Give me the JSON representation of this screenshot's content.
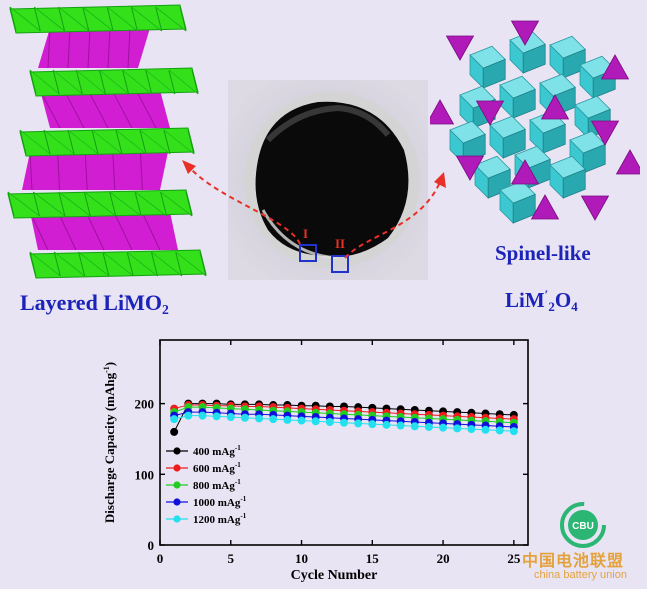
{
  "labels": {
    "layered": "Layered LiMO",
    "layered_sub": "2",
    "spinel_line1": "Spinel-like",
    "spinel_main": "LiM",
    "spinel_prime": "′",
    "spinel_sub1": "2",
    "spinel_o": "O",
    "spinel_sub2": "4",
    "region_1": "I",
    "region_2": "II"
  },
  "colors": {
    "layer_green": "#33e01a",
    "layer_magenta": "#d21ed2",
    "octahedra_cyan": "#3cc8d0",
    "tetrahedra_magenta": "#b01ab8",
    "arrow_red": "#e83028",
    "label_blue": "#1c23b8",
    "background": "#e8e4f4"
  },
  "watermark": {
    "logo_text": "CBU",
    "cn": "中国电池联盟",
    "en": "china battery union"
  },
  "chart_data": {
    "type": "line",
    "xlabel": "Cycle Number",
    "ylabel": "Discharge Capacity (mAhg",
    "ylabel_sup": "-1",
    "ylabel_close": ")",
    "xlim": [
      0,
      26
    ],
    "ylim": [
      0,
      290
    ],
    "xticks": [
      "0",
      "5",
      "10",
      "15",
      "20",
      "25"
    ],
    "yticks": [
      "0",
      "100",
      "200"
    ],
    "x": [
      1,
      2,
      3,
      4,
      5,
      6,
      7,
      8,
      9,
      10,
      11,
      12,
      13,
      14,
      15,
      16,
      17,
      18,
      19,
      20,
      21,
      22,
      23,
      24,
      25
    ],
    "series": [
      {
        "name": "400 mAg",
        "sup": "-1",
        "color": "#000000",
        "values": [
          160,
          200,
          200,
          200,
          199,
          199,
          199,
          198,
          198,
          197,
          197,
          196,
          196,
          195,
          194,
          193,
          192,
          191,
          190,
          189,
          188,
          187,
          186,
          185,
          184
        ]
      },
      {
        "name": "600 mAg",
        "sup": "-1",
        "color": "#ee1c1c",
        "values": [
          193,
          198,
          198,
          197,
          197,
          196,
          196,
          195,
          194,
          193,
          192,
          191,
          190,
          189,
          188,
          187,
          186,
          185,
          184,
          183,
          182,
          181,
          180,
          179,
          178
        ]
      },
      {
        "name": "800 mAg",
        "sup": "-1",
        "color": "#22cc22",
        "values": [
          188,
          195,
          195,
          194,
          193,
          192,
          191,
          190,
          189,
          188,
          187,
          186,
          185,
          184,
          183,
          182,
          181,
          180,
          179,
          178,
          177,
          176,
          175,
          174,
          173
        ]
      },
      {
        "name": "1000 mAg",
        "sup": "-1",
        "color": "#1010dd",
        "values": [
          183,
          188,
          188,
          187,
          186,
          185,
          185,
          184,
          183,
          182,
          181,
          180,
          179,
          178,
          177,
          176,
          175,
          174,
          173,
          172,
          171,
          170,
          169,
          168,
          167
        ]
      },
      {
        "name": "1200 mAg",
        "sup": "-1",
        "color": "#22e0ee",
        "values": [
          178,
          183,
          183,
          182,
          181,
          180,
          179,
          178,
          177,
          176,
          175,
          174,
          173,
          172,
          171,
          170,
          169,
          168,
          167,
          166,
          165,
          164,
          163,
          162,
          161
        ]
      }
    ]
  }
}
